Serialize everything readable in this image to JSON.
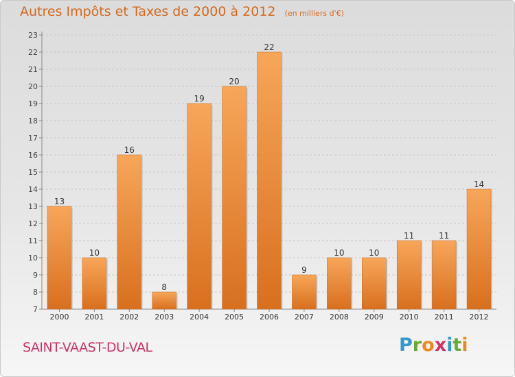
{
  "title": "Autres Impôts et Taxes de 2000 à 2012",
  "subtitle": "(en milliers d'€)",
  "commune": "SAINT-VAAST-DU-VAL",
  "logo": {
    "letters": [
      "P",
      "r",
      "o",
      "x",
      "i",
      "t",
      "i"
    ],
    "colors": [
      "#3399cc",
      "#66aa33",
      "#ee8822",
      "#cc3366",
      "#3399cc",
      "#66aa33",
      "#ee8822"
    ]
  },
  "colors": {
    "bar_light": "#f7a65a",
    "bar_dark": "#d8701e",
    "title": "#d2691e",
    "commune": "#cc3366"
  },
  "chart_data": {
    "type": "bar",
    "title": "Autres Impôts et Taxes de 2000 à 2012",
    "subtitle": "(en milliers d'€)",
    "categories": [
      "2000",
      "2001",
      "2002",
      "2003",
      "2004",
      "2005",
      "2006",
      "2007",
      "2008",
      "2009",
      "2010",
      "2011",
      "2012"
    ],
    "values": [
      13,
      10,
      16,
      8,
      19,
      20,
      22,
      9,
      10,
      10,
      11,
      11,
      14
    ],
    "ylim": [
      7,
      23
    ],
    "yticks": [
      7,
      8,
      9,
      10,
      11,
      12,
      13,
      14,
      15,
      16,
      17,
      18,
      19,
      20,
      21,
      22,
      23
    ],
    "grid": true,
    "legend": "none"
  }
}
